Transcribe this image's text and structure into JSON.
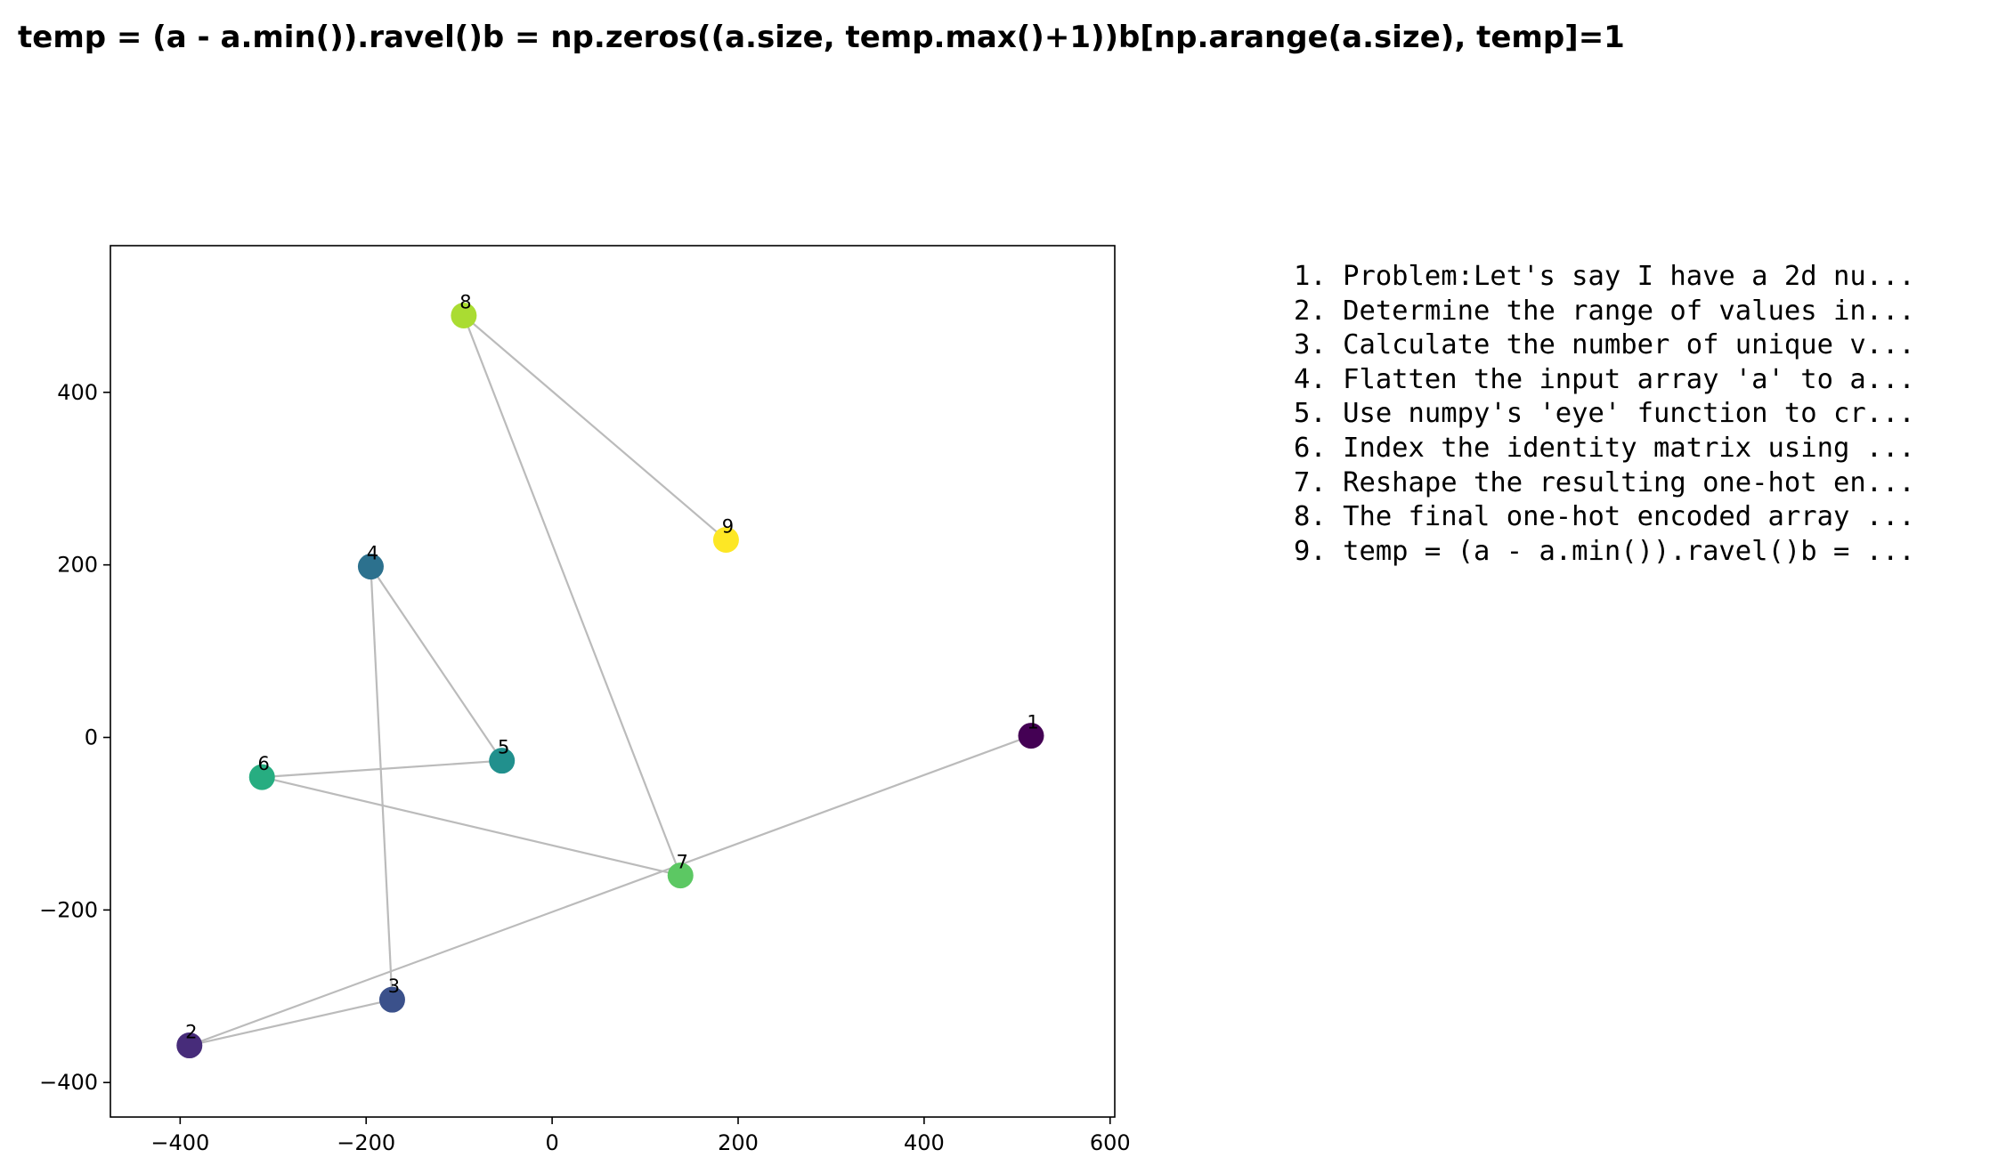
{
  "chart_data": {
    "type": "scatter",
    "title": "temp = (a - a.min()).ravel()b = np.zeros((a.size, temp.max()+1))b[np.arange(a.size), temp]=1",
    "xlabel": "",
    "ylabel": "",
    "xlim": [
      -475,
      605
    ],
    "ylim": [
      -440,
      570
    ],
    "xticks": [
      -400,
      -200,
      0,
      200,
      400,
      600
    ],
    "yticks": [
      -400,
      -200,
      0,
      200,
      400
    ],
    "xtick_labels": [
      "−400",
      "−200",
      "0",
      "200",
      "400",
      "600"
    ],
    "ytick_labels": [
      "−400",
      "−200",
      "0",
      "200",
      "400"
    ],
    "grid": false,
    "connect_order": true,
    "points": [
      {
        "label": "1",
        "x": 515,
        "y": 2,
        "color": "#440154"
      },
      {
        "label": "2",
        "x": -390,
        "y": -357,
        "color": "#472c7a"
      },
      {
        "label": "3",
        "x": -172,
        "y": -304,
        "color": "#3b518b"
      },
      {
        "label": "4",
        "x": -195,
        "y": 198,
        "color": "#2c718e"
      },
      {
        "label": "5",
        "x": -54,
        "y": -27,
        "color": "#21908d"
      },
      {
        "label": "6",
        "x": -312,
        "y": -46,
        "color": "#27ad81"
      },
      {
        "label": "7",
        "x": 138,
        "y": -160,
        "color": "#5cc863"
      },
      {
        "label": "8",
        "x": -95,
        "y": 489,
        "color": "#aadc32"
      },
      {
        "label": "9",
        "x": 187,
        "y": 229,
        "color": "#fde725"
      }
    ],
    "line_color": "#bbbbbb",
    "steps": [
      "1. Problem:Let's say I have a 2d nu...",
      "2. Determine the range of values in...",
      "3. Calculate the number of unique v...",
      "4. Flatten the input array 'a' to a...",
      "5. Use numpy's 'eye' function to cr...",
      "6. Index the identity matrix using ...",
      "7. Reshape the resulting one-hot en...",
      "8. The final one-hot encoded array ...",
      "9. temp = (a - a.min()).ravel()b = ..."
    ]
  }
}
